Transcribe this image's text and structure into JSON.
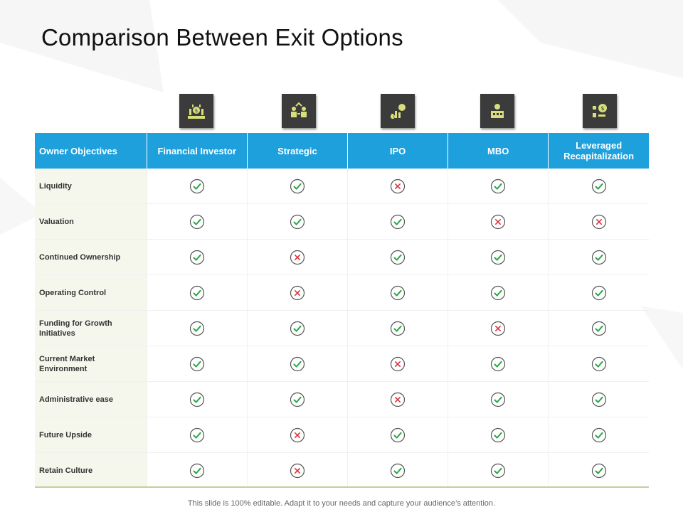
{
  "slide": {
    "title": "Comparison Between Exit Options",
    "footer": "This slide is 100% editable. Adapt it to your needs and capture your audience’s attention."
  },
  "colors": {
    "header_bg": "#1ea0dd",
    "label_bg": "#f5f7ed",
    "check": "#27a844",
    "cross": "#e0303c",
    "icon_box": "#3b3b3b",
    "icon_accent": "#d8df7a"
  },
  "icons": [
    "financial-investor-icon",
    "strategic-icon",
    "ipo-icon",
    "mbo-icon",
    "leveraged-recap-icon"
  ],
  "table": {
    "headers": [
      "Owner Objectives",
      "Financial Investor",
      "Strategic",
      "IPO",
      "MBO",
      "Leveraged Recapitalization"
    ],
    "rows": [
      {
        "label": "Liquidity",
        "values": [
          "yes",
          "yes",
          "no",
          "yes",
          "yes"
        ]
      },
      {
        "label": "Valuation",
        "values": [
          "yes",
          "yes",
          "yes",
          "no",
          "no"
        ]
      },
      {
        "label": "Continued  Ownership",
        "values": [
          "yes",
          "no",
          "yes",
          "yes",
          "yes"
        ]
      },
      {
        "label": "Operating Control",
        "values": [
          "yes",
          "no",
          "yes",
          "yes",
          "yes"
        ]
      },
      {
        "label": "Funding  for Growth Initiatives",
        "values": [
          "yes",
          "yes",
          "yes",
          "no",
          "yes"
        ]
      },
      {
        "label": "Current Market Environment",
        "values": [
          "yes",
          "yes",
          "no",
          "yes",
          "yes"
        ]
      },
      {
        "label": "Administrative ease",
        "values": [
          "yes",
          "yes",
          "no",
          "yes",
          "yes"
        ]
      },
      {
        "label": "Future Upside",
        "values": [
          "yes",
          "no",
          "yes",
          "yes",
          "yes"
        ]
      },
      {
        "label": "Retain Culture",
        "values": [
          "yes",
          "no",
          "yes",
          "yes",
          "yes"
        ]
      }
    ]
  }
}
